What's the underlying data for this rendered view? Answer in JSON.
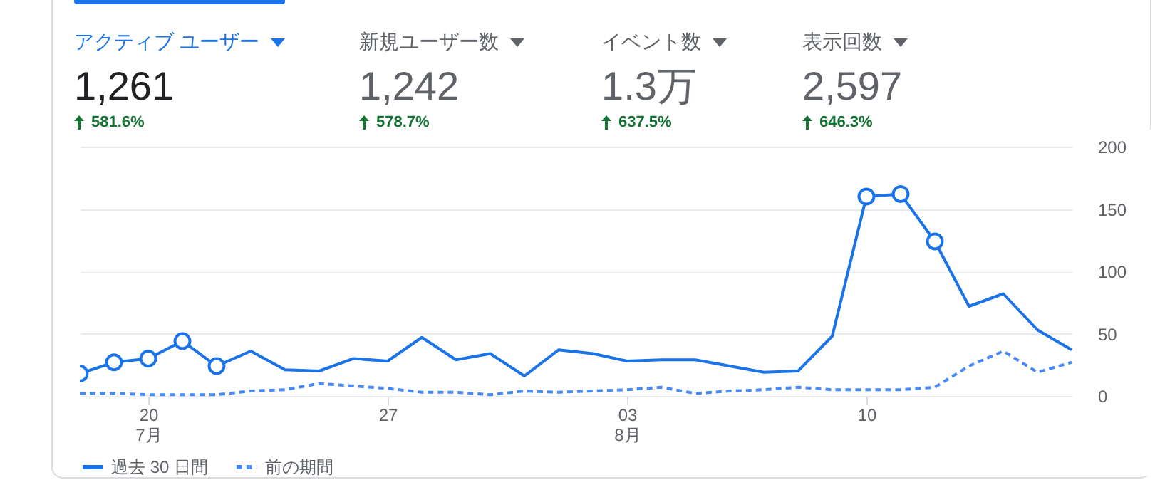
{
  "chart_data": [
    {
      "type": "other",
      "annotations": [
        "アクティブ ユーザー",
        "1,261",
        "581.6%",
        "新規ユーザー数",
        "1,242",
        "578.7%",
        "イベント数",
        "1.3万",
        "637.5%",
        "表示回数",
        "2,597",
        "646.3%"
      ]
    },
    {
      "type": "line",
      "x": [
        "--07-18",
        "--07-19",
        "--07-20",
        "--07-21",
        "--07-22",
        "--07-23",
        "--07-24",
        "--07-25",
        "--07-26",
        "--07-27",
        "--07-28",
        "--07-29",
        "--07-30",
        "--07-31",
        "--08-01",
        "--08-02",
        "--08-03",
        "--08-04",
        "--08-05",
        "--08-06",
        "--08-07",
        "--08-08",
        "--08-09",
        "--08-10",
        "--08-11",
        "--08-12",
        "--08-13",
        "--08-14",
        "--08-15",
        "--08-16"
      ],
      "series": [
        {
          "name": "過去 30 日間",
          "color": "#1a73e8",
          "line_style": "solid",
          "values": [
            18,
            27,
            30,
            44,
            24,
            36,
            21,
            20,
            30,
            28,
            47,
            29,
            34,
            16,
            37,
            34,
            28,
            29,
            29,
            24,
            19,
            20,
            48,
            160,
            162,
            124,
            72,
            82,
            53,
            37
          ]
        },
        {
          "name": "前の期間",
          "color": "#4a8af4",
          "line_style": "dashed",
          "values": [
            2,
            2,
            1,
            1,
            1,
            4,
            5,
            10,
            8,
            6,
            3,
            3,
            1,
            4,
            3,
            4,
            5,
            7,
            2,
            4,
            5,
            7,
            5,
            5,
            5,
            7,
            24,
            36,
            19,
            27
          ]
        },
        {
          "type": "scatter",
          "color": "#1a73e8",
          "marker": "circle",
          "x": [
            "--07-18",
            "--07-19",
            "--07-20",
            "--07-21",
            "--07-22",
            "--08-10",
            "--08-11",
            "--08-12"
          ],
          "values": [
            18,
            27,
            30,
            44,
            24,
            160,
            162,
            124
          ]
        }
      ],
      "xlim": [
        "--07-18",
        "--08-16"
      ],
      "xticks": [
        {
          "value": "--07-20",
          "label": "20\n7月"
        },
        {
          "value": "--07-27",
          "label": "27"
        },
        {
          "value": "--08-03",
          "label": "03\n8月"
        },
        {
          "value": "--08-10",
          "label": "10"
        }
      ],
      "ylim": [
        0,
        200
      ],
      "yticks": [
        0,
        50,
        100,
        150,
        200
      ],
      "grid": "y",
      "legend": "bottom left"
    }
  ]
}
